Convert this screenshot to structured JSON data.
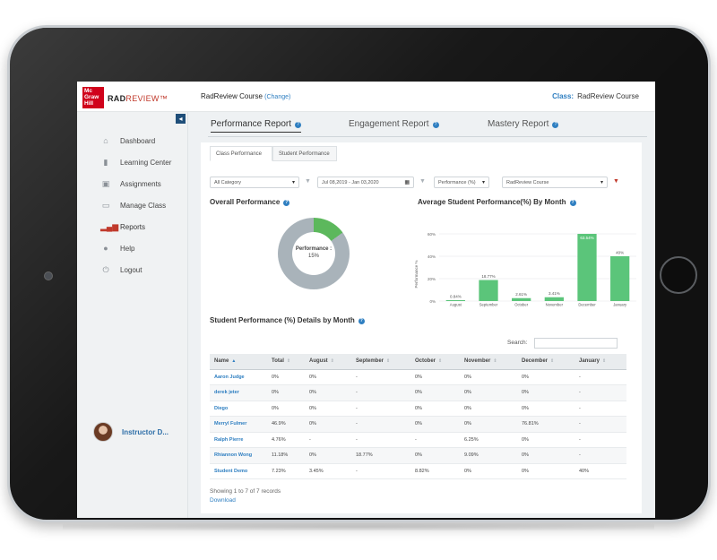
{
  "header": {
    "logo_lines": [
      "Mc",
      "Graw",
      "Hill"
    ],
    "brand_bold": "RAD",
    "brand_rest": "REVIEW™",
    "course_name": "RadReview Course",
    "change_link": "(Change)",
    "class_label": "Class:",
    "class_value": "RadReview Course"
  },
  "sidebar": {
    "items": [
      {
        "label": "Dashboard",
        "icon": "home-icon"
      },
      {
        "label": "Learning Center",
        "icon": "book-icon"
      },
      {
        "label": "Assignments",
        "icon": "clipboard-icon"
      },
      {
        "label": "Manage Class",
        "icon": "edit-icon"
      },
      {
        "label": "Reports",
        "icon": "bar-chart-icon"
      },
      {
        "label": "Help",
        "icon": "user-help-icon"
      },
      {
        "label": "Logout",
        "icon": "power-icon"
      }
    ],
    "active": "Reports",
    "profile_name": "Instructor D..."
  },
  "tabs": {
    "performance": "Performance Report",
    "engagement": "Engagement Report",
    "mastery": "Mastery Report",
    "active": "Performance Report"
  },
  "subtabs": {
    "class_perf": "Class Performance",
    "student_perf": "Student Performance",
    "active": "Class Performance"
  },
  "filters": {
    "category": "All Category",
    "date_range": "Jul 08,2019 - Jan 03,2020",
    "metric": "Performance (%)",
    "course": "RadReview Course"
  },
  "overall": {
    "title": "Overall Performance",
    "label": "Performance :",
    "value": "15%",
    "fraction": 0.15
  },
  "monthly": {
    "title": "Average Student Performance(%) By Month"
  },
  "chart_data": {
    "type": "bar",
    "title": "Average Student Performance(%) By Month",
    "ylabel": "Performance %",
    "xlabel": "",
    "ylim": [
      0,
      60
    ],
    "yticks": [
      "0%",
      "20%",
      "40%",
      "60%"
    ],
    "categories": [
      "August",
      "September",
      "October",
      "November",
      "December",
      "January"
    ],
    "values": [
      0.84,
      18.77,
      2.61,
      3.41,
      63.54,
      40
    ],
    "labels": [
      "0.84%",
      "18.77%",
      "2.61%",
      "3.41%",
      "63.54%",
      "40%"
    ],
    "color": "#5bc57a"
  },
  "table": {
    "title": "Student Performance (%) Details by Month",
    "search_label": "Search:",
    "columns": [
      "Name",
      "Total",
      "August",
      "September",
      "October",
      "November",
      "December",
      "January"
    ],
    "rows": [
      [
        "Aaron Judge",
        "0%",
        "0%",
        "-",
        "0%",
        "0%",
        "0%",
        "-"
      ],
      [
        "derek jeter",
        "0%",
        "0%",
        "-",
        "0%",
        "0%",
        "0%",
        "-"
      ],
      [
        "Diego",
        "0%",
        "0%",
        "-",
        "0%",
        "0%",
        "0%",
        "-"
      ],
      [
        "Merryl Fulmer",
        "46.9%",
        "0%",
        "-",
        "0%",
        "0%",
        "76.81%",
        "-"
      ],
      [
        "Ralph Pierre",
        "4.76%",
        "-",
        "-",
        "-",
        "6.25%",
        "0%",
        "-"
      ],
      [
        "Rhiannon Wong",
        "11.18%",
        "0%",
        "18.77%",
        "0%",
        "9.09%",
        "0%",
        "-"
      ],
      [
        "Student Demo",
        "7.23%",
        "3.45%",
        "-",
        "8.82%",
        "0%",
        "0%",
        "40%"
      ]
    ],
    "records_text": "Showing 1 to 7 of 7 records",
    "download_label": "Download"
  }
}
